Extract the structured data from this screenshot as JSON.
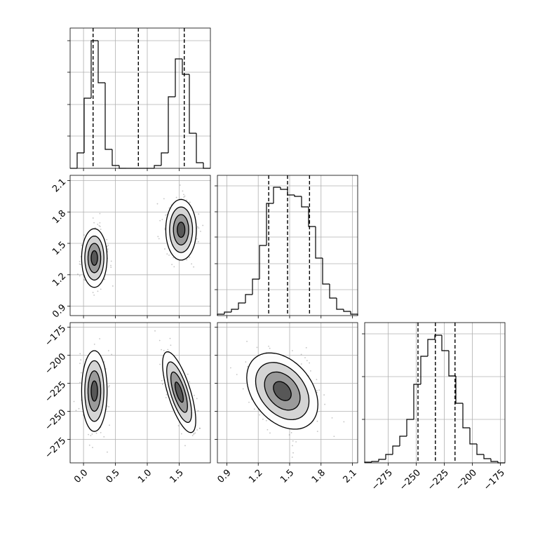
{
  "chart_data": {
    "type": "corner",
    "params": [
      {
        "lim": [
          -0.21,
          1.99
        ],
        "ticks": [
          {
            "value": 0,
            "label": "0.0"
          },
          0.5,
          {
            "value": 1,
            "label": "1.0"
          },
          1.5
        ]
      },
      {
        "lim": [
          0.81,
          2.15
        ],
        "ticks": [
          0.9,
          1.2,
          1.5,
          1.8,
          2.1
        ]
      },
      {
        "lim": [
          -296,
          -171
        ],
        "ticks": [
          {
            "value": -275,
            "label": "−275"
          },
          {
            "value": -250,
            "label": "−250"
          },
          {
            "value": -225,
            "label": "−225"
          },
          {
            "value": -200,
            "label": "−200"
          },
          {
            "value": -175,
            "label": "−175"
          }
        ]
      }
    ],
    "histograms": [
      {
        "bins": [
          -0.21,
          -0.1,
          0.01,
          0.12,
          0.23,
          0.34,
          0.45,
          0.56,
          0.67,
          0.78,
          0.89,
          1.0,
          1.11,
          1.22,
          1.33,
          1.44,
          1.55,
          1.66,
          1.77,
          1.88,
          1.99
        ],
        "counts": [
          0,
          22,
          100,
          182,
          122,
          27,
          4,
          0,
          0,
          0,
          0,
          0,
          4,
          22,
          102,
          156,
          134,
          50,
          8,
          0
        ],
        "ylim": [
          0,
          200
        ],
        "yticks": [
          46,
          91,
          137,
          182
        ],
        "quantiles": [
          0.15,
          0.86,
          1.58
        ]
      },
      {
        "bins": [
          0.81,
          0.877,
          0.944,
          1.011,
          1.078,
          1.145,
          1.212,
          1.279,
          1.346,
          1.413,
          1.48,
          1.547,
          1.614,
          1.681,
          1.748,
          1.815,
          1.882,
          1.949,
          2.016,
          2.083,
          2.15
        ],
        "counts": [
          2,
          5,
          9,
          18,
          30,
          52,
          100,
          160,
          183,
          180,
          172,
          170,
          155,
          127,
          82,
          45,
          25,
          9,
          6,
          2
        ],
        "ylim": [
          0,
          200
        ],
        "yticks": [
          37,
          74,
          112,
          148,
          185
        ],
        "quantiles": [
          1.3,
          1.48,
          1.69
        ]
      },
      {
        "bins": [
          -296,
          -289.75,
          -283.5,
          -277.25,
          -271,
          -264.75,
          -258.5,
          -252.25,
          -246,
          -239.75,
          -233.5,
          -227.25,
          -221,
          -214.75,
          -208.5,
          -202.25,
          -196,
          -189.75,
          -183.5,
          -177.25,
          -171
        ],
        "counts": [
          1,
          2,
          5,
          12,
          24,
          38,
          62,
          112,
          152,
          176,
          182,
          160,
          124,
          85,
          50,
          27,
          12,
          6,
          2,
          0
        ],
        "ylim": [
          0,
          200
        ],
        "yticks": [
          62,
          123,
          184
        ],
        "quantiles": [
          -248.5,
          -233,
          -215.5
        ]
      }
    ],
    "levels": [
      0.5,
      1,
      1.5,
      2
    ],
    "panels": [
      {
        "x": 0,
        "y": 1,
        "clusters": [
          {
            "center": [
              0.17,
              1.36
            ],
            "spread": [
              0.1,
              0.14
            ],
            "rho": 0
          },
          {
            "center": [
              1.53,
              1.63
            ],
            "spread": [
              0.12,
              0.145
            ],
            "rho": 0
          }
        ]
      },
      {
        "x": 0,
        "y": 2,
        "clusters": [
          {
            "center": [
              0.17,
              -232
            ],
            "spread": [
              0.1,
              18
            ],
            "rho": 0
          },
          {
            "center": [
              1.5,
              -233
            ],
            "spread": [
              0.13,
              18
            ],
            "rho": -0.7
          }
        ]
      },
      {
        "x": 1,
        "y": 2,
        "clusters": [
          {
            "center": [
              1.43,
              -232
            ],
            "spread": [
              0.17,
              17
            ],
            "rho": -0.35
          }
        ]
      }
    ]
  }
}
